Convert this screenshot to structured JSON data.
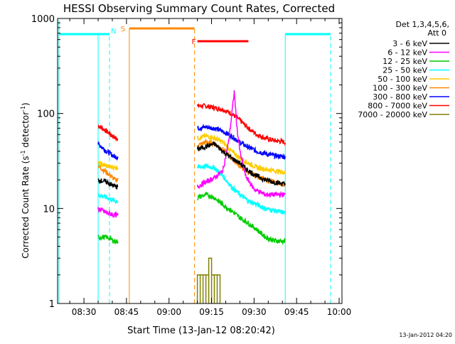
{
  "chart_data": {
    "type": "line",
    "title": "HESSI Observing Summary Count Rates, Corrected",
    "xlabel": "Start Time (13-Jan-12 08:20:42)",
    "ylabel_main": "Corrected Count Rate (s",
    "ylabel_sup1": "-1",
    "ylabel_mid": " detector",
    "ylabel_sup2": "-1",
    "ylabel_end": ")",
    "yscale": "log",
    "ylim": [
      1,
      1000
    ],
    "xlim": [
      "08:20:42",
      "10:01:00"
    ],
    "x_ticks": [
      {
        "label": "08:30",
        "value": "08:30"
      },
      {
        "label": "08:45",
        "value": "08:45"
      },
      {
        "label": "09:00",
        "value": "09:00"
      },
      {
        "label": "09:15",
        "value": "09:15"
      },
      {
        "label": "09:30",
        "value": "09:30"
      },
      {
        "label": "09:45",
        "value": "09:45"
      },
      {
        "label": "10:00",
        "value": "10:00"
      }
    ],
    "y_ticks": [
      {
        "label": "1",
        "value": 1
      },
      {
        "label": "10",
        "value": 10
      },
      {
        "label": "100",
        "value": 100
      },
      {
        "label": "1000",
        "value": 1000
      }
    ],
    "legend_header": [
      "Det 1,3,4,5,6,",
      "Att 0"
    ],
    "legend_position": "right",
    "timestamp": "13-Jan-2012 04:20",
    "series": [
      {
        "name": "3 - 6 keV",
        "color": "#000000",
        "x": [
          "08:35",
          "08:38",
          "08:41",
          "08:42",
          "09:10",
          "09:13",
          "09:16",
          "09:19",
          "09:22",
          "09:25",
          "09:28",
          "09:31",
          "09:34",
          "09:37",
          "09:41"
        ],
        "y": [
          20,
          19,
          17,
          17,
          42,
          45,
          48,
          40,
          34,
          30,
          25,
          22,
          20,
          19,
          18
        ]
      },
      {
        "name": "6 - 12 keV",
        "color": "#ff00ff",
        "x": [
          "08:35",
          "08:38",
          "08:41",
          "08:42",
          "09:10",
          "09:13",
          "09:16",
          "09:19",
          "09:21",
          "09:22",
          "09:23",
          "09:24",
          "09:25",
          "09:27",
          "09:30",
          "09:34",
          "09:37",
          "09:41"
        ],
        "y": [
          10,
          9,
          8.5,
          8.5,
          17,
          19,
          21,
          25,
          50,
          90,
          170,
          70,
          40,
          22,
          16,
          14,
          14,
          14
        ]
      },
      {
        "name": "12 - 25 keV",
        "color": "#00cc00",
        "x": [
          "08:35",
          "08:38",
          "08:41",
          "08:42",
          "09:10",
          "09:13",
          "09:16",
          "09:19",
          "09:22",
          "09:25",
          "09:28",
          "09:31",
          "09:34",
          "09:37",
          "09:41"
        ],
        "y": [
          5,
          5,
          4.5,
          4.5,
          13,
          14,
          13,
          11,
          9.5,
          8,
          7,
          6,
          5,
          4.6,
          4.5
        ]
      },
      {
        "name": "25 - 50 keV",
        "color": "#00ffff",
        "x": [
          "08:35",
          "08:38",
          "08:41",
          "08:42",
          "09:10",
          "09:13",
          "09:16",
          "09:19",
          "09:22",
          "09:25",
          "09:28",
          "09:31",
          "09:34",
          "09:37",
          "09:41"
        ],
        "y": [
          14,
          13,
          12,
          12,
          27,
          28,
          27,
          22,
          17,
          14,
          12,
          11,
          10,
          9.5,
          9
        ]
      },
      {
        "name": "50 - 100 keV",
        "color": "#ffcc00",
        "x": [
          "08:35",
          "08:38",
          "08:41",
          "08:42",
          "09:10",
          "09:13",
          "09:16",
          "09:19",
          "09:22",
          "09:25",
          "09:28",
          "09:31",
          "09:34",
          "09:37",
          "09:41"
        ],
        "y": [
          30,
          28,
          27,
          27,
          55,
          58,
          55,
          50,
          40,
          34,
          30,
          27,
          26,
          25,
          24
        ]
      },
      {
        "name": "100 - 300 keV",
        "color": "#ff8800",
        "x": [
          "08:35",
          "08:38",
          "08:41",
          "08:42",
          "09:10",
          "09:13",
          "09:16",
          "09:19",
          "09:22",
          "09:25",
          "09:28",
          "09:31",
          "09:34",
          "09:37",
          "09:41"
        ],
        "y": [
          28,
          24,
          20,
          20,
          46,
          50,
          48,
          42,
          34,
          28,
          24,
          22,
          20,
          19,
          18
        ]
      },
      {
        "name": "300 - 800 keV",
        "color": "#0000ff",
        "x": [
          "08:35",
          "08:38",
          "08:41",
          "08:42",
          "09:10",
          "09:13",
          "09:16",
          "09:19",
          "09:22",
          "09:25",
          "09:28",
          "09:31",
          "09:34",
          "09:37",
          "09:41"
        ],
        "y": [
          48,
          40,
          35,
          35,
          70,
          72,
          70,
          65,
          58,
          50,
          44,
          40,
          38,
          36,
          35
        ]
      },
      {
        "name": "800 - 7000 keV",
        "color": "#ff0000",
        "x": [
          "08:35",
          "08:38",
          "08:41",
          "08:42",
          "09:10",
          "09:13",
          "09:16",
          "09:19",
          "09:22",
          "09:25",
          "09:28",
          "09:31",
          "09:34",
          "09:37",
          "09:41"
        ],
        "y": [
          75,
          65,
          55,
          55,
          120,
          120,
          115,
          110,
          100,
          85,
          70,
          60,
          55,
          52,
          50
        ]
      },
      {
        "name": "7000 - 20000 keV",
        "color": "#808000",
        "x": [
          "09:10",
          "09:11",
          "09:12",
          "09:13",
          "09:14",
          "09:15",
          "09:16",
          "09:17",
          "09:18"
        ],
        "y": [
          2,
          2,
          2,
          2,
          3,
          2,
          2,
          2,
          2
        ]
      }
    ],
    "flags": [
      {
        "label": "N",
        "color": "#00ffff"
      },
      {
        "label": "S",
        "color": "#ff8800"
      },
      {
        "label": "F",
        "color": "#ff0000"
      }
    ]
  }
}
